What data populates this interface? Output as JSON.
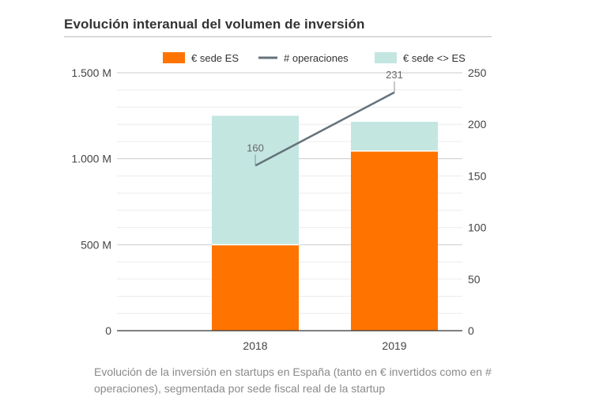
{
  "title": "Evolución interanual del volumen de inversión",
  "caption": "Evolución de la inversión en startups en España (tanto en € invertidos como en # operaciones), segmentada por sede fiscal real de la startup",
  "chart_data": {
    "type": "bar",
    "stacked": true,
    "categories": [
      "2018",
      "2019"
    ],
    "series": [
      {
        "name": "€ sede ES",
        "type": "bar",
        "axis": "left",
        "color": "#ff7400",
        "values": [
          500,
          1045
        ]
      },
      {
        "name": "€ sede <> ES",
        "type": "bar",
        "axis": "left",
        "color": "#c3e6e1",
        "values": [
          750,
          170
        ]
      },
      {
        "name": "# operaciones",
        "type": "line",
        "axis": "right",
        "color": "#65737b",
        "values": [
          160,
          231
        ],
        "data_labels": [
          "160",
          "231"
        ]
      }
    ],
    "left_axis": {
      "ylim": [
        0,
        1500
      ],
      "ticks": [
        0,
        500,
        1000,
        1500
      ],
      "tick_labels": [
        "0",
        "500 M",
        "1.000 M",
        "1.500 M"
      ]
    },
    "right_axis": {
      "ylim": [
        0,
        250
      ],
      "ticks": [
        0,
        50,
        100,
        150,
        200,
        250
      ],
      "tick_labels": [
        "0",
        "50",
        "100",
        "150",
        "200",
        "250"
      ]
    },
    "legend": {
      "placement": "top",
      "order": [
        "€ sede ES",
        "# operaciones",
        "€ sede <> ES"
      ]
    },
    "grid": true
  }
}
